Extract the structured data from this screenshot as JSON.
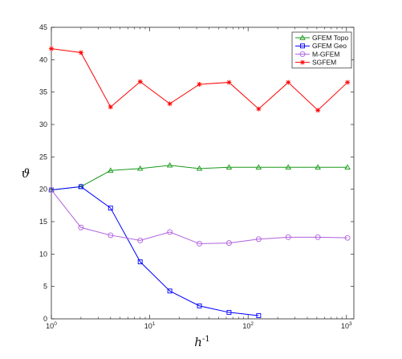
{
  "chart_data": {
    "type": "line",
    "xscale": "log",
    "xlim": [
      1,
      1000
    ],
    "ylim": [
      0,
      45
    ],
    "xlabel_base": "h",
    "xlabel_exp": "-1",
    "ylabel": "ϑ",
    "x_ticks": [
      {
        "value": 1,
        "base": "10",
        "exp": "0"
      },
      {
        "value": 10,
        "base": "10",
        "exp": "1"
      },
      {
        "value": 100,
        "base": "10",
        "exp": "2"
      },
      {
        "value": 1000,
        "base": "10",
        "exp": "3"
      }
    ],
    "y_ticks": [
      "0",
      "5",
      "10",
      "15",
      "20",
      "25",
      "30",
      "35",
      "40",
      "45"
    ],
    "legend_position": "top-right",
    "series": [
      {
        "name": "GFEM Topo",
        "color": "#1a9a1a",
        "marker": "triangle",
        "x": [
          1,
          2,
          4,
          8,
          16,
          32,
          64,
          128,
          256,
          512,
          1024
        ],
        "values": [
          19.9,
          20.4,
          22.9,
          23.2,
          23.7,
          23.2,
          23.4,
          23.4,
          23.4,
          23.4,
          23.4
        ]
      },
      {
        "name": "GFEM Geo",
        "color": "#0000ff",
        "marker": "square",
        "x": [
          1,
          2,
          4,
          8,
          16,
          32,
          64,
          128
        ],
        "values": [
          19.9,
          20.4,
          17.1,
          8.8,
          4.3,
          2.0,
          1.0,
          0.5
        ]
      },
      {
        "name": "M-GFEM",
        "color": "#b060e0",
        "marker": "circle",
        "x": [
          1,
          2,
          4,
          8,
          16,
          32,
          64,
          128,
          256,
          512,
          1024
        ],
        "values": [
          19.9,
          14.1,
          12.9,
          12.1,
          13.4,
          11.6,
          11.7,
          12.3,
          12.6,
          12.6,
          12.5
        ]
      },
      {
        "name": "SGFEM",
        "color": "#ff0000",
        "marker": "asterisk",
        "x": [
          1,
          2,
          4,
          8,
          16,
          32,
          64,
          128,
          256,
          512,
          1024
        ],
        "values": [
          41.7,
          41.1,
          32.7,
          36.6,
          33.2,
          36.2,
          36.5,
          32.4,
          36.5,
          32.2,
          36.5
        ]
      }
    ]
  }
}
